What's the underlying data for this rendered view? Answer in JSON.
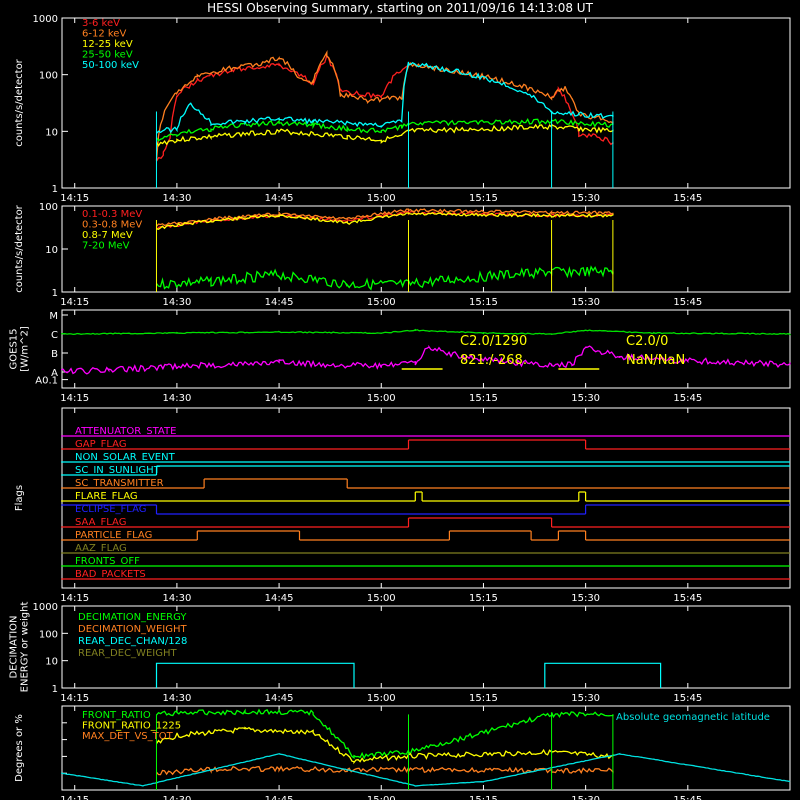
{
  "title": "HESSI Observing Summary, starting on 2011/09/16 14:13:08 UT",
  "time_ticks": [
    "14:15",
    "14:30",
    "14:45",
    "15:00",
    "15:15",
    "15:30",
    "15:45"
  ],
  "chart_data": [
    {
      "type": "line",
      "panel": "low-energy-rates",
      "ylabel": "counts/s/detector",
      "yscale": "log",
      "ylim": [
        1,
        1000
      ],
      "yticks": [
        "1",
        "10",
        "100",
        "1000"
      ],
      "xlim": [
        "14:13:08",
        "16:00:00"
      ],
      "series": [
        {
          "name": "3-6 keV",
          "color": "#ff2020",
          "x": [
            "14:27",
            "14:28",
            "14:29",
            "14:30",
            "14:33",
            "14:38",
            "14:45",
            "14:50",
            "14:52",
            "14:54",
            "15:00",
            "15:04",
            "15:05",
            "15:25",
            "15:26",
            "15:28",
            "15:29",
            "15:32",
            "15:34"
          ],
          "y": [
            3,
            4,
            8,
            40,
            80,
            120,
            150,
            70,
            200,
            50,
            40,
            150,
            null,
            40,
            55,
            20,
            9,
            8,
            6
          ]
        },
        {
          "name": "6-12 keV",
          "color": "#ff8020",
          "x": [
            "14:27",
            "14:30",
            "14:33",
            "14:38",
            "14:42",
            "14:45",
            "14:48",
            "14:50",
            "14:52",
            "14:54",
            "14:58",
            "15:03",
            "15:04",
            "15:25",
            "15:27",
            "15:28",
            "15:29",
            "15:34"
          ],
          "y": [
            3,
            50,
            90,
            130,
            150,
            200,
            80,
            75,
            230,
            45,
            35,
            40,
            150,
            40,
            60,
            35,
            20,
            15
          ]
        },
        {
          "name": "12-25 keV",
          "color": "#ffff00",
          "x": [
            "14:27",
            "14:30",
            "14:35",
            "14:40",
            "14:45",
            "14:50",
            "14:55",
            "15:00",
            "15:03",
            "15:04",
            "15:25",
            "15:29",
            "15:34"
          ],
          "y": [
            6,
            7,
            8,
            9,
            10,
            9,
            8,
            7,
            8,
            10,
            12,
            11,
            10
          ]
        },
        {
          "name": "25-50 keV",
          "color": "#00ff00",
          "x": [
            "14:27",
            "14:30",
            "14:35",
            "14:40",
            "14:45",
            "14:50",
            "14:55",
            "15:00",
            "15:03",
            "15:04",
            "15:25",
            "15:29",
            "15:34"
          ],
          "y": [
            7,
            9,
            11,
            13,
            14,
            13,
            11,
            10,
            12,
            14,
            15,
            14,
            13
          ]
        },
        {
          "name": "50-100 keV",
          "color": "#00ffff",
          "x": [
            "14:27",
            "14:30",
            "14:32",
            "14:35",
            "14:40",
            "14:45",
            "14:50",
            "14:55",
            "15:00",
            "15:03",
            "15:04",
            "15:25",
            "15:29",
            "15:34"
          ],
          "y": [
            10,
            11,
            30,
            14,
            15,
            17,
            15,
            14,
            13,
            15,
            160,
            22,
            20,
            18
          ]
        }
      ]
    },
    {
      "type": "line",
      "panel": "high-energy-rates",
      "ylabel": "counts/s/detector",
      "yscale": "log",
      "ylim": [
        1,
        100
      ],
      "yticks": [
        "1",
        "10",
        "100"
      ],
      "series": [
        {
          "name": "0.1-0.3 MeV",
          "color": "#ff2020",
          "x": [
            "14:27",
            "14:35",
            "14:45",
            "14:55",
            "15:04",
            "15:25",
            "15:34"
          ],
          "y": [
            30,
            45,
            60,
            45,
            70,
            60,
            60
          ]
        },
        {
          "name": "0.3-0.8 MeV",
          "color": "#ff8020",
          "x": [
            "14:27",
            "14:35",
            "14:45",
            "14:55",
            "15:04",
            "15:25",
            "15:34"
          ],
          "y": [
            35,
            50,
            65,
            50,
            80,
            70,
            70
          ]
        },
        {
          "name": "0.8-7 MeV",
          "color": "#ffff00",
          "x": [
            "14:27",
            "14:35",
            "14:45",
            "14:55",
            "15:04",
            "15:25",
            "15:34"
          ],
          "y": [
            30,
            45,
            60,
            40,
            65,
            60,
            60
          ]
        },
        {
          "name": "7-20 MeV",
          "color": "#00ff00",
          "x": [
            "14:27",
            "14:35",
            "14:45",
            "14:55",
            "15:04",
            "15:25",
            "15:34"
          ],
          "y": [
            1.5,
            1.8,
            2.5,
            1.5,
            1.5,
            3,
            3
          ]
        }
      ]
    },
    {
      "type": "line",
      "panel": "goes",
      "ylabel": "GOES15",
      "yunit": "W/m^2",
      "yticks": [
        "A0.1",
        "A",
        "B",
        "C",
        "M"
      ],
      "series": [
        {
          "name": "GOES long",
          "color": "#00e000",
          "x": [
            "14:13",
            "14:30",
            "14:45",
            "15:00",
            "15:05",
            "15:15",
            "15:25",
            "15:30",
            "15:40",
            "16:00"
          ],
          "y": [
            2.0,
            2.05,
            2.1,
            2.05,
            2.2,
            2.05,
            2.0,
            2.2,
            2.05,
            2.0
          ]
        },
        {
          "name": "GOES short",
          "color": "#ff00ff",
          "x": [
            "14:13",
            "14:20",
            "14:30",
            "14:45",
            "15:00",
            "15:05",
            "15:07",
            "15:12",
            "15:20",
            "15:25",
            "15:28",
            "15:30",
            "15:35",
            "15:45",
            "16:00"
          ],
          "y": [
            0.0,
            0.1,
            0.3,
            0.5,
            0.3,
            0.5,
            1.3,
            0.8,
            0.5,
            0.3,
            0.4,
            1.3,
            0.8,
            0.6,
            0.4
          ]
        }
      ],
      "annotations": [
        "C2.0/1290",
        "821./-268.",
        "C2.0/0",
        "NaN/NaN"
      ]
    },
    {
      "type": "line",
      "panel": "flags",
      "ylabel": "Flags",
      "series": [
        {
          "name": "ATTENUATOR_STATE",
          "color": "#ff00ff"
        },
        {
          "name": "GAP_FLAG",
          "color": "#ff2020"
        },
        {
          "name": "NON_SOLAR_EVENT",
          "color": "#00ffff"
        },
        {
          "name": "SC_IN_SUNLIGHT",
          "color": "#00ffff"
        },
        {
          "name": "SC_TRANSMITTER",
          "color": "#ff8020"
        },
        {
          "name": "FLARE_FLAG",
          "color": "#ffff00"
        },
        {
          "name": "ECLIPSE_FLAG",
          "color": "#2020ff"
        },
        {
          "name": "SAA_FLAG",
          "color": "#ff2020"
        },
        {
          "name": "PARTICLE_FLAG",
          "color": "#ff8020"
        },
        {
          "name": "AAZ_FLAG",
          "color": "#808020"
        },
        {
          "name": "FRONTS_OFF",
          "color": "#00ff00"
        },
        {
          "name": "BAD_PACKETS",
          "color": "#ff2020"
        }
      ]
    },
    {
      "type": "line",
      "panel": "decimation",
      "ylabel": "DECIMATION ENERGY or weight",
      "yscale": "log",
      "ylim": [
        1,
        1000
      ],
      "yticks": [
        "1",
        "10",
        "100",
        "1000"
      ],
      "series": [
        {
          "name": "DECIMATION_ENERGY",
          "color": "#00ff00"
        },
        {
          "name": "DECIMATION_WEIGHT",
          "color": "#ff8020"
        },
        {
          "name": "REAR_DEC_CHAN/128",
          "color": "#00ffff",
          "x": [
            "14:27",
            "14:27",
            "14:56",
            "14:56",
            "15:24",
            "15:24",
            "15:41",
            "15:41"
          ],
          "y": [
            1,
            8,
            8,
            1,
            1,
            8,
            8,
            1
          ]
        },
        {
          "name": "REAR_DEC_WEIGHT",
          "color": "#808020"
        }
      ]
    },
    {
      "type": "line",
      "panel": "ratios",
      "ylabel": "Degrees or %",
      "ylim": [
        0,
        100
      ],
      "series": [
        {
          "name": "FRONT_RATIO",
          "color": "#00ff00",
          "x": [
            "14:27",
            "14:30",
            "14:40",
            "14:50",
            "14:56",
            "15:04",
            "15:25",
            "15:34"
          ],
          "y": [
            90,
            92,
            93,
            92,
            40,
            45,
            90,
            90
          ]
        },
        {
          "name": "FRONT_RATIO_1225",
          "color": "#ffff00",
          "x": [
            "14:27",
            "14:30",
            "14:40",
            "14:50",
            "14:56",
            "15:04",
            "15:25",
            "15:34"
          ],
          "y": [
            55,
            65,
            72,
            68,
            35,
            40,
            45,
            40
          ]
        },
        {
          "name": "MAX_DET_VS_TOT",
          "color": "#ff8020",
          "x": [
            "14:27",
            "14:35",
            "14:45",
            "14:55",
            "15:04",
            "15:25",
            "15:34"
          ],
          "y": [
            20,
            25,
            25,
            24,
            24,
            23,
            23
          ]
        },
        {
          "name": "Absolute geomagnetic latitude",
          "color": "#00e0e0",
          "x": [
            "14:13",
            "14:25",
            "14:45",
            "15:05",
            "15:15",
            "15:35",
            "16:00"
          ],
          "y": [
            20,
            5,
            43,
            5,
            10,
            43,
            10
          ]
        }
      ]
    }
  ]
}
